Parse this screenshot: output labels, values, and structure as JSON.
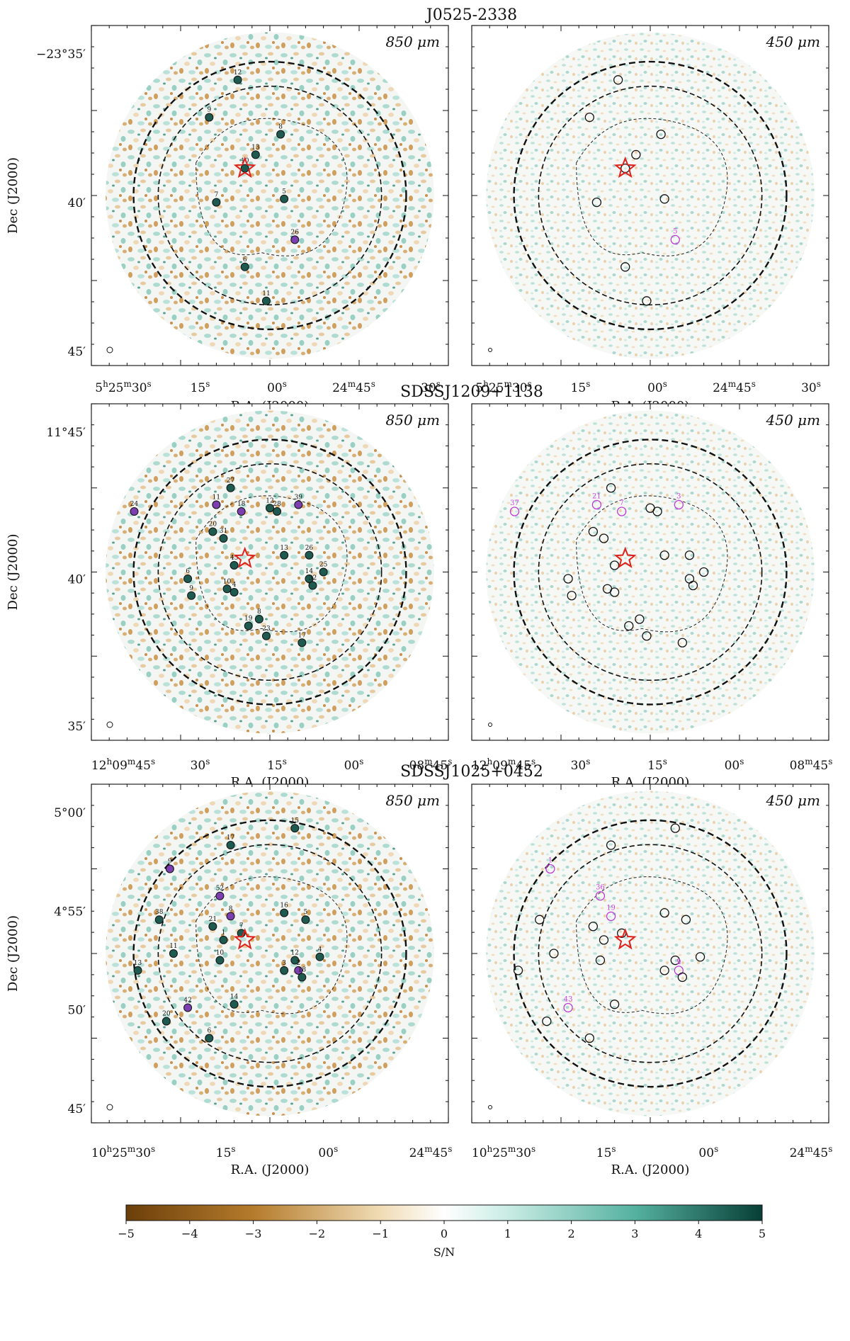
{
  "figure": {
    "panels": [
      {
        "title": "J0525-2338",
        "left_wavelength": "850 μm",
        "right_wavelength": "450 μm",
        "ylabel": "Dec (J2000)",
        "xlabel": "R.A. (J2000)",
        "dec_ticks": [
          "−23°35′",
          "40′",
          "45′"
        ],
        "ra_ticks": [
          "5h25m30s",
          "15s",
          "00s",
          "24m45s",
          "30s"
        ],
        "sources_850": [
          "12",
          "9",
          "8",
          "13",
          "10",
          "7",
          "5",
          "26",
          "6",
          "11"
        ],
        "sources_450_magenta": [
          "5"
        ]
      },
      {
        "title": "SDSSJ1209+1138",
        "left_wavelength": "850 μm",
        "right_wavelength": "450 μm",
        "ylabel": "Dec (J2000)",
        "xlabel": "R.A. (J2000)",
        "dec_ticks": [
          "11°45′",
          "40′",
          "35′"
        ],
        "ra_ticks": [
          "12h09m45s",
          "30s",
          "15s",
          "00s",
          "08m45s"
        ],
        "sources_850": [
          "24",
          "11",
          "27",
          "18",
          "12",
          "28",
          "39",
          "20",
          "31",
          "13",
          "26",
          "45",
          "6",
          "10",
          "14",
          "25",
          "9",
          "4",
          "8",
          "32",
          "19",
          "23",
          "17"
        ],
        "sources_450_magenta": [
          "37",
          "21",
          "7",
          "3"
        ]
      },
      {
        "title": "SDSSJ1025+0452",
        "left_wavelength": "850 μm",
        "right_wavelength": "450 μm",
        "ylabel": "Dec (J2000)",
        "xlabel": "R.A. (J2000)",
        "dec_ticks": [
          "5°00′",
          "4°55′",
          "50′",
          "45′"
        ],
        "ra_ticks": [
          "10h25m30s",
          "15s",
          "00s",
          "24m45s"
        ],
        "sources_850": [
          "15",
          "17",
          "9",
          "16",
          "8",
          "38",
          "5",
          "21",
          "1",
          "7",
          "13",
          "11",
          "10",
          "12",
          "4",
          "2",
          "3",
          "18",
          "14",
          "42",
          "20",
          "6",
          "52"
        ],
        "sources_450_magenta": [
          "2",
          "19",
          "43",
          "1",
          "36",
          "9"
        ]
      }
    ],
    "colorbar": {
      "label": "S/N",
      "ticks": [
        "−5",
        "−4",
        "−3",
        "−2",
        "−1",
        "0",
        "1",
        "2",
        "3",
        "4",
        "5"
      ],
      "colors": {
        "negative": "#7a4a10",
        "neutral": "#ffffff",
        "positive": "#0d4a40"
      }
    }
  }
}
